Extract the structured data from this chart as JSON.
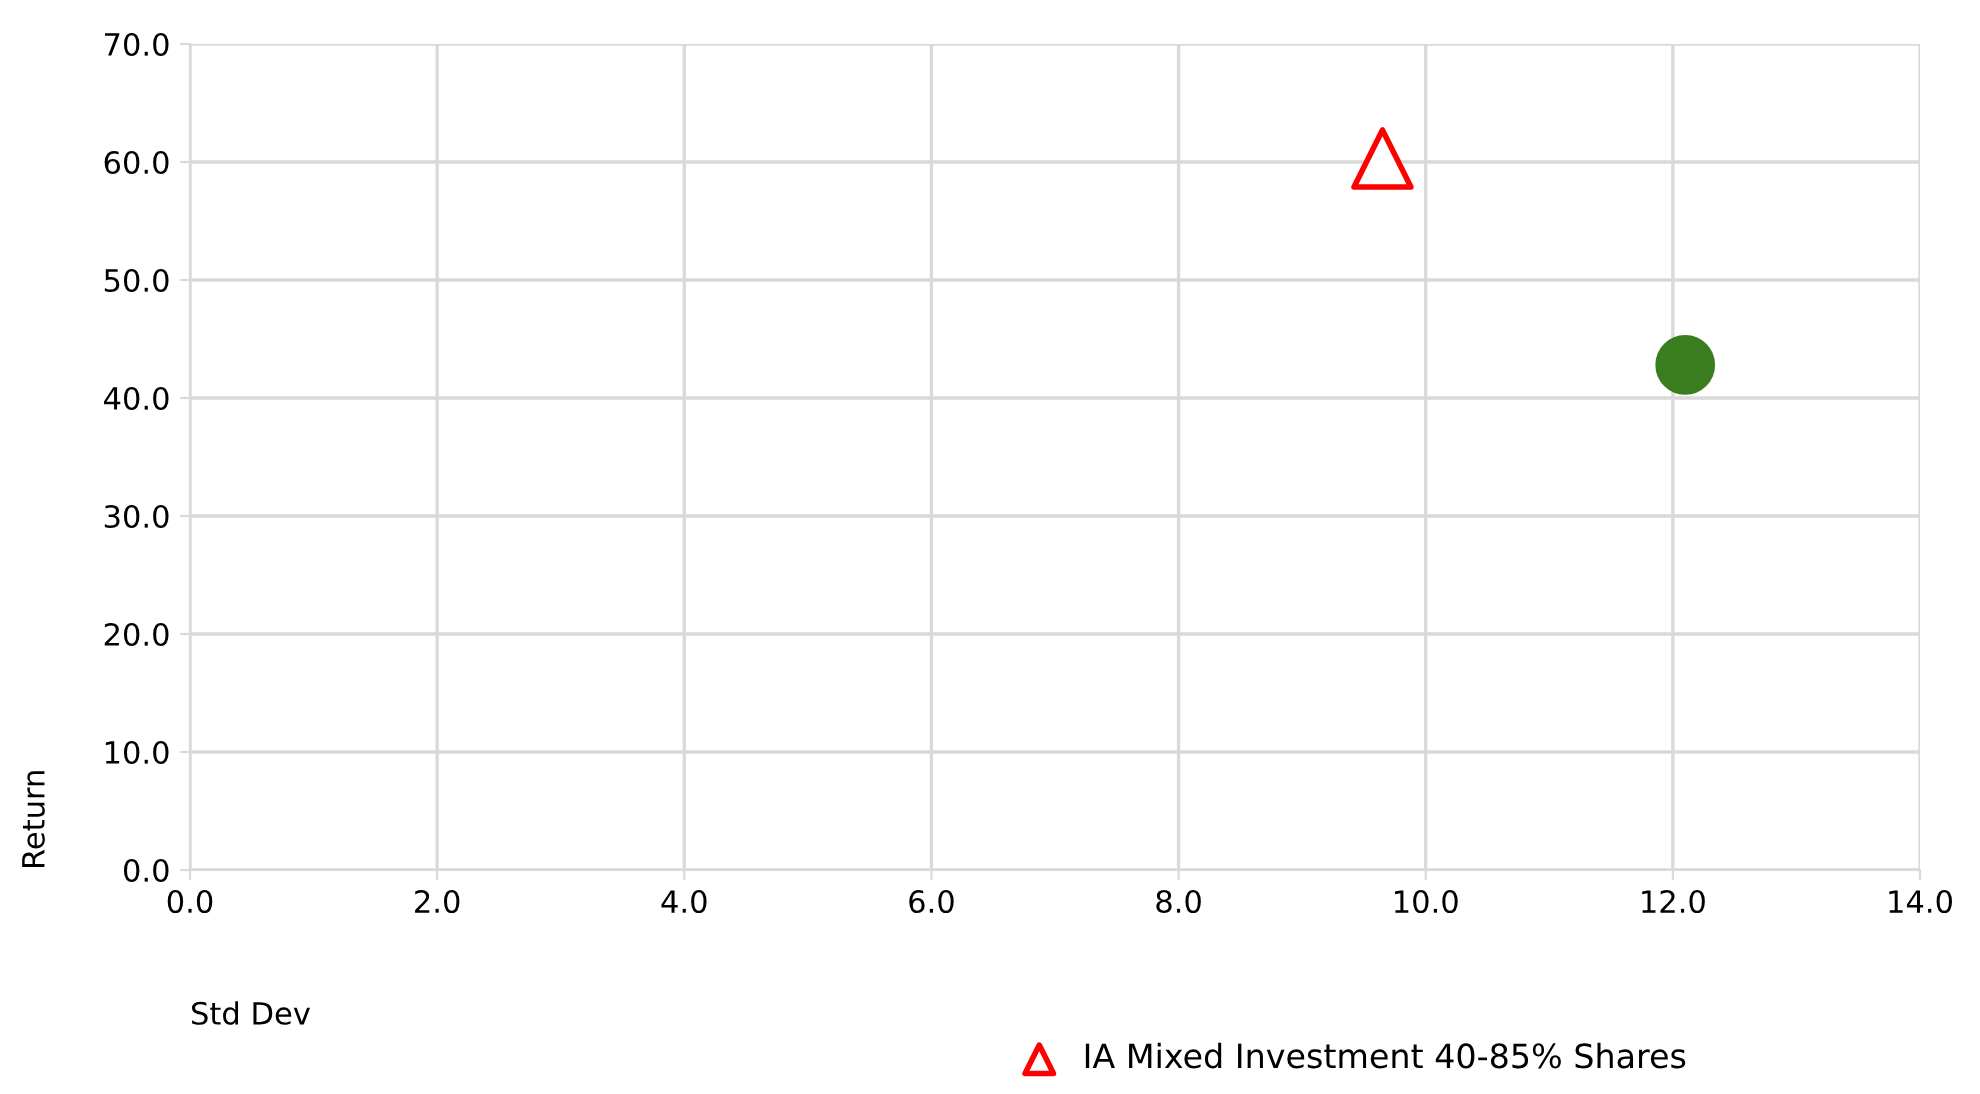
{
  "chart_data": {
    "type": "scatter",
    "xlabel": "Std Dev",
    "ylabel": "Return",
    "series": [
      {
        "color": "#3a7d1e",
        "marker": "circle",
        "x": [
          12.1
        ],
        "values": [
          42.8
        ]
      },
      {
        "name": "IA Mixed Investment 40-85% Shares",
        "color": "#ff0000",
        "marker": "triangle",
        "x": [
          9.65
        ],
        "values": [
          60.3
        ]
      }
    ],
    "xlim": [
      0,
      14
    ],
    "xticks": [
      {
        "value": 0,
        "label": "0.0"
      },
      {
        "value": 2,
        "label": "2.0"
      },
      {
        "value": 4,
        "label": "4.0"
      },
      {
        "value": 6,
        "label": "6.0"
      },
      {
        "value": 8,
        "label": "8.0"
      },
      {
        "value": 10,
        "label": "10.0"
      },
      {
        "value": 12,
        "label": "12.0"
      },
      {
        "value": 14,
        "label": "14.0"
      }
    ],
    "ylim": [
      0,
      70
    ],
    "yticks": [
      {
        "value": 0,
        "label": "0.0"
      },
      {
        "value": 10,
        "label": "10.0"
      },
      {
        "value": 20,
        "label": "20.0"
      },
      {
        "value": 30,
        "label": "30.0"
      },
      {
        "value": 40,
        "label": "40.0"
      },
      {
        "value": 50,
        "label": "50.0"
      },
      {
        "value": 60,
        "label": "60.0"
      },
      {
        "value": 70,
        "label": "70.0"
      }
    ],
    "grid": true,
    "legend": "bottom"
  }
}
